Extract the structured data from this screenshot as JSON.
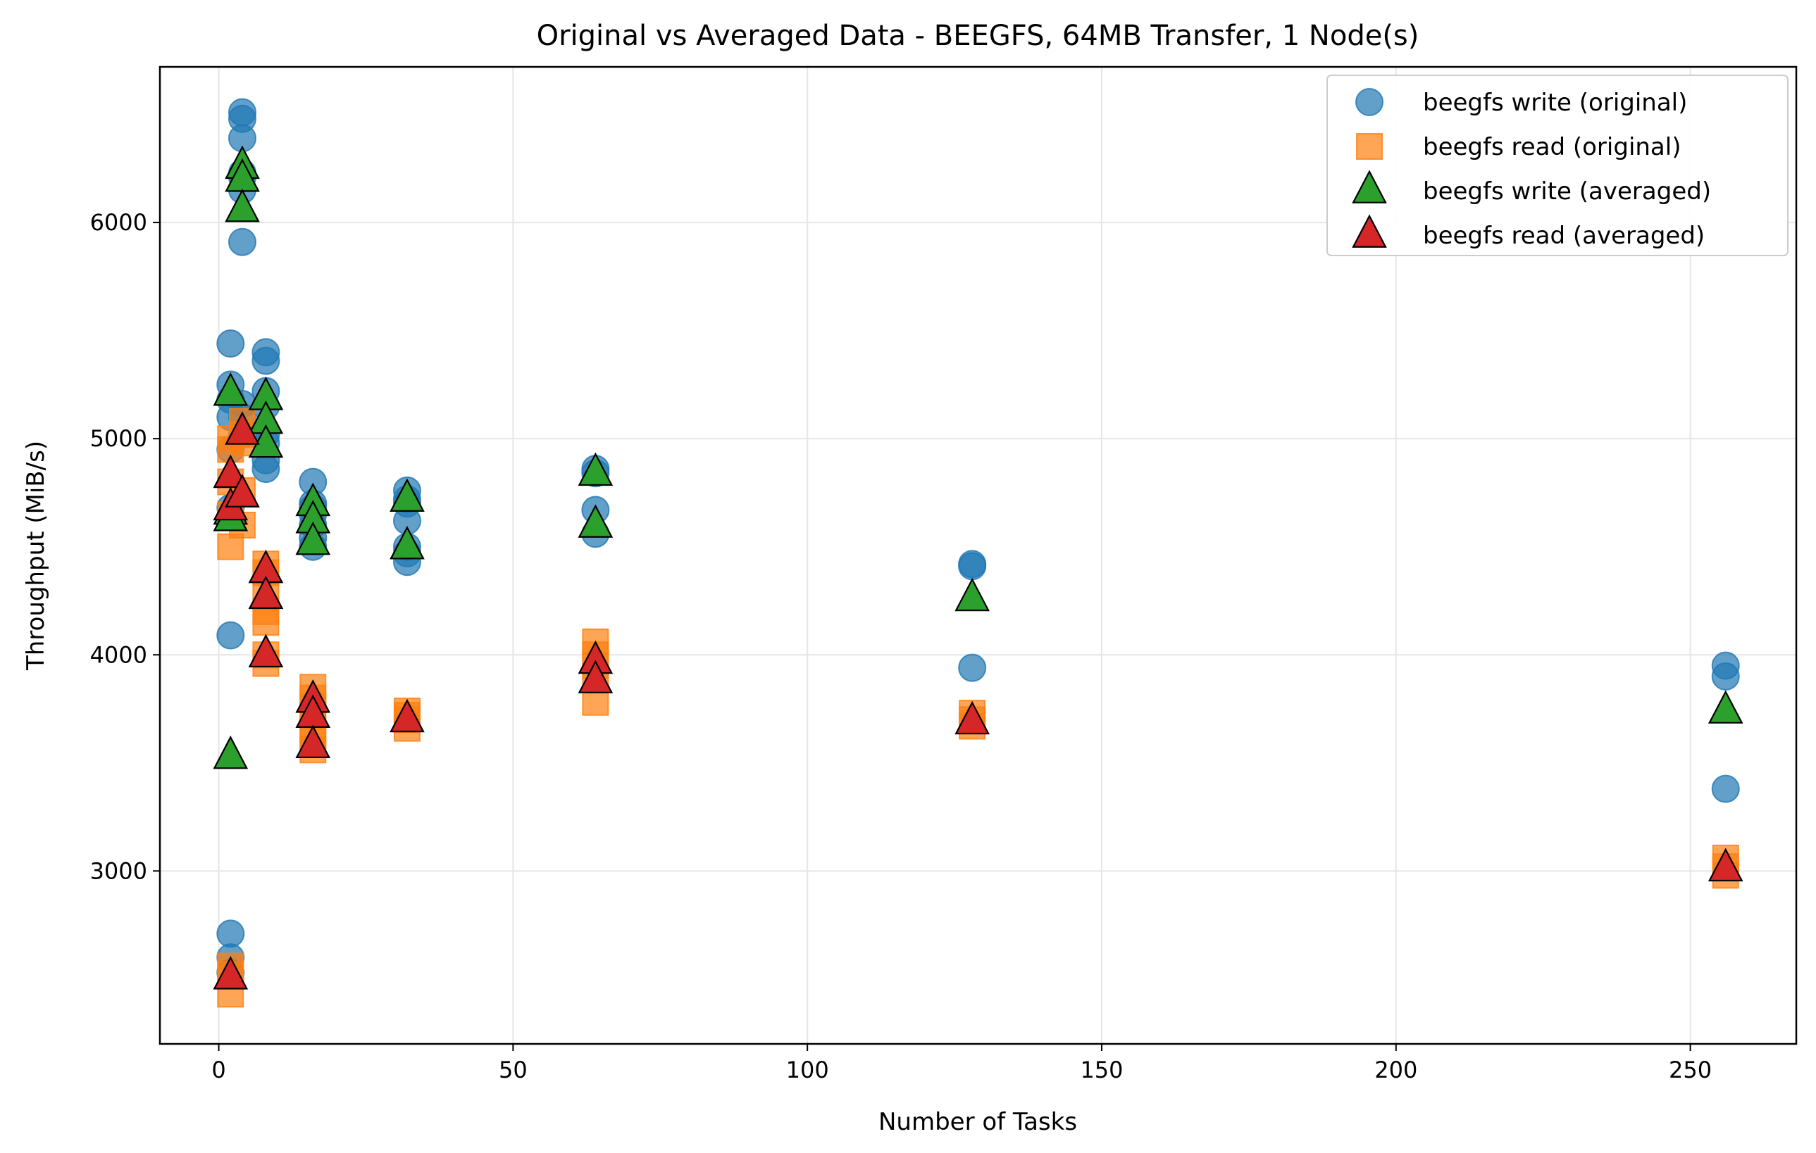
{
  "chart_data": {
    "type": "scatter",
    "title": "Original vs Averaged Data - BEEGFS, 64MB Transfer, 1 Node(s)",
    "xlabel": "Number of Tasks",
    "ylabel": "Throughput (MiB/s)",
    "xlim": [
      -10,
      268
    ],
    "ylim": [
      2200,
      6720
    ],
    "xticks": [
      0,
      50,
      100,
      150,
      200,
      250
    ],
    "yticks": [
      3000,
      4000,
      5000,
      6000
    ],
    "grid": true,
    "legend_position": "top-right",
    "series": [
      {
        "name": "beegfs write (original)",
        "marker": "circle",
        "color": "#1f77b4",
        "points": [
          [
            2,
            5440
          ],
          [
            2,
            5250
          ],
          [
            2,
            5180
          ],
          [
            2,
            5100
          ],
          [
            2,
            4950
          ],
          [
            2,
            4680
          ],
          [
            2,
            4640
          ],
          [
            2,
            4090
          ],
          [
            2,
            2710
          ],
          [
            2,
            2600
          ],
          [
            2,
            2530
          ],
          [
            4,
            6510
          ],
          [
            4,
            6480
          ],
          [
            4,
            6390
          ],
          [
            4,
            6230
          ],
          [
            4,
            6210
          ],
          [
            4,
            6150
          ],
          [
            4,
            5910
          ],
          [
            4,
            5160
          ],
          [
            4,
            5100
          ],
          [
            4,
            5020
          ],
          [
            8,
            5400
          ],
          [
            8,
            5360
          ],
          [
            8,
            5220
          ],
          [
            8,
            5150
          ],
          [
            8,
            5020
          ],
          [
            8,
            4980
          ],
          [
            8,
            4900
          ],
          [
            8,
            4860
          ],
          [
            16,
            4800
          ],
          [
            16,
            4700
          ],
          [
            16,
            4680
          ],
          [
            16,
            4650
          ],
          [
            16,
            4600
          ],
          [
            16,
            4540
          ],
          [
            16,
            4500
          ],
          [
            32,
            4760
          ],
          [
            32,
            4720
          ],
          [
            32,
            4700
          ],
          [
            32,
            4620
          ],
          [
            32,
            4500
          ],
          [
            32,
            4470
          ],
          [
            32,
            4430
          ],
          [
            64,
            4860
          ],
          [
            64,
            4840
          ],
          [
            64,
            4670
          ],
          [
            64,
            4560
          ],
          [
            128,
            4420
          ],
          [
            128,
            4410
          ],
          [
            128,
            3940
          ],
          [
            256,
            3950
          ],
          [
            256,
            3900
          ],
          [
            256,
            3380
          ]
        ]
      },
      {
        "name": "beegfs read (original)",
        "marker": "square",
        "color": "#ff7f0e",
        "points": [
          [
            2,
            5000
          ],
          [
            2,
            4950
          ],
          [
            2,
            4800
          ],
          [
            2,
            4650
          ],
          [
            2,
            4500
          ],
          [
            2,
            2560
          ],
          [
            2,
            2520
          ],
          [
            2,
            2430
          ],
          [
            4,
            5080
          ],
          [
            4,
            5020
          ],
          [
            4,
            4980
          ],
          [
            4,
            4760
          ],
          [
            4,
            4600
          ],
          [
            8,
            4420
          ],
          [
            8,
            4380
          ],
          [
            8,
            4300
          ],
          [
            8,
            4200
          ],
          [
            8,
            4150
          ],
          [
            8,
            4000
          ],
          [
            8,
            3960
          ],
          [
            16,
            3850
          ],
          [
            16,
            3800
          ],
          [
            16,
            3760
          ],
          [
            16,
            3720
          ],
          [
            16,
            3650
          ],
          [
            16,
            3600
          ],
          [
            16,
            3560
          ],
          [
            32,
            3740
          ],
          [
            32,
            3720
          ],
          [
            32,
            3700
          ],
          [
            32,
            3660
          ],
          [
            64,
            4060
          ],
          [
            64,
            4000
          ],
          [
            64,
            3950
          ],
          [
            64,
            3900
          ],
          [
            64,
            3780
          ],
          [
            128,
            3730
          ],
          [
            128,
            3700
          ],
          [
            128,
            3670
          ],
          [
            256,
            3060
          ],
          [
            256,
            3020
          ],
          [
            256,
            2980
          ]
        ]
      },
      {
        "name": "beegfs write (averaged)",
        "marker": "triangle",
        "color": "#2ca02c",
        "points": [
          [
            2,
            5210
          ],
          [
            2,
            4660
          ],
          [
            2,
            4630
          ],
          [
            2,
            3530
          ],
          [
            4,
            6260
          ],
          [
            4,
            6200
          ],
          [
            4,
            6060
          ],
          [
            8,
            5190
          ],
          [
            8,
            5080
          ],
          [
            8,
            4970
          ],
          [
            16,
            4700
          ],
          [
            16,
            4620
          ],
          [
            16,
            4520
          ],
          [
            32,
            4720
          ],
          [
            32,
            4500
          ],
          [
            64,
            4840
          ],
          [
            64,
            4600
          ],
          [
            128,
            4260
          ],
          [
            256,
            3740
          ]
        ]
      },
      {
        "name": "beegfs read (averaged)",
        "marker": "triangle",
        "color": "#d62728",
        "points": [
          [
            2,
            4830
          ],
          [
            2,
            4680
          ],
          [
            2,
            2510
          ],
          [
            4,
            5030
          ],
          [
            4,
            4740
          ],
          [
            8,
            4390
          ],
          [
            8,
            4270
          ],
          [
            8,
            4000
          ],
          [
            16,
            3790
          ],
          [
            16,
            3720
          ],
          [
            16,
            3580
          ],
          [
            32,
            3700
          ],
          [
            64,
            3970
          ],
          [
            64,
            3880
          ],
          [
            128,
            3690
          ],
          [
            256,
            3010
          ]
        ]
      }
    ]
  }
}
